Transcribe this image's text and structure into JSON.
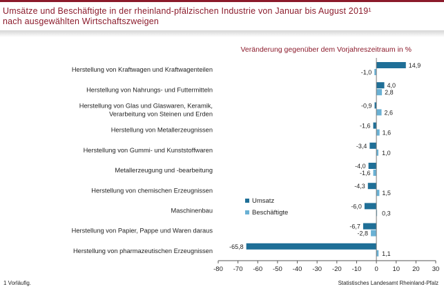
{
  "title_line1": "Umsätze und Beschäftigte in der rheinland-pfälzischen Industrie von Januar bis August 2019¹",
  "title_line2": "nach ausgewählten Wirtschaftszweigen",
  "footnote": "1 Vorläufig.",
  "source": "Statistisches Landesamt Rheinland-Pfalz",
  "colors": {
    "title": "#8b1a2b",
    "umsatz": "#1f6f97",
    "beschaeftigte": "#6ab1d4"
  },
  "chart_data": {
    "type": "bar",
    "orientation": "horizontal",
    "title": "Veränderung gegenüber dem Vorjahreszeitraum in %",
    "xlim": [
      -80,
      30
    ],
    "xticks": [
      -80,
      -70,
      -60,
      -50,
      -40,
      -30,
      -20,
      -10,
      0,
      10,
      20,
      30
    ],
    "grid": false,
    "legend_position": "center-right",
    "categories": [
      "Herstellung von Kraftwagen und Kraftwagenteilen",
      "Herstellung von Nahrungs- und Futtermitteln",
      "Herstellung von Glas und Glaswaren, Keramik, Verarbeitung von Steinen und Erden",
      "Herstellung von Metallerzeugnissen",
      "Herstellung von Gummi- und Kunststoffwaren",
      "Metallerzeugung und -bearbeitung",
      "Herstellung von chemischen Erzeugnissen",
      "Maschinenbau",
      "Herstellung von Papier, Pappe und Waren daraus",
      "Herstellung von pharmazeutischen Erzeugnissen"
    ],
    "series": [
      {
        "name": "Umsatz",
        "values": [
          14.9,
          4.0,
          -0.9,
          -1.6,
          -3.4,
          -4.0,
          -4.3,
          -6.0,
          -6.7,
          -65.8
        ],
        "labels": [
          "14,9",
          "4,0",
          "-0,9",
          "-1,6",
          "-3,4",
          "-4,0",
          "-4,3",
          "-6,0",
          "-6,7",
          "-65,8"
        ]
      },
      {
        "name": "Beschäftigte",
        "values": [
          -1.0,
          2.8,
          2.6,
          1.6,
          1.0,
          -1.6,
          1.5,
          0.3,
          -2.8,
          1.1
        ],
        "labels": [
          "-1,0",
          "2,8",
          "2,6",
          "1,6",
          "1,0",
          "-1,6",
          "1,5",
          "0,3",
          "-2,8",
          "1,1"
        ]
      }
    ]
  }
}
